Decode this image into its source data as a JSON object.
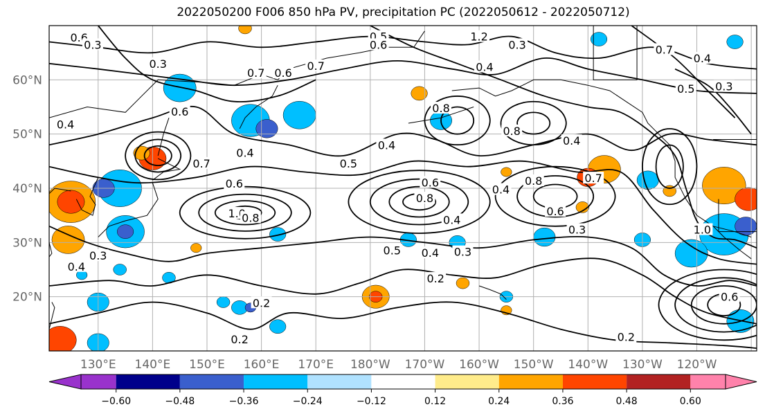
{
  "title": "2022050200 F006 850 hPa PV, precipitation PC (2022050612 - 2022050712)",
  "lon_labels": [
    "130°E",
    "140°E",
    "150°E",
    "160°E",
    "170°E",
    "180°W",
    "170°W",
    "160°W",
    "150°W",
    "140°W",
    "130°W",
    "120°W"
  ],
  "lat_labels": [
    "60°N",
    "50°N",
    "40°N",
    "30°N",
    "20°N"
  ],
  "map_extent": {
    "lon_min": 121,
    "lon_max": 251,
    "lat_min": 10,
    "lat_max": 70
  },
  "contour_labels": [
    {
      "text": "0.6",
      "lon": 126.5,
      "lat": 67.8
    },
    {
      "text": "0.3",
      "lon": 129,
      "lat": 66.5
    },
    {
      "text": "0.3",
      "lon": 141,
      "lat": 63
    },
    {
      "text": "0.7",
      "lon": 159,
      "lat": 61.3
    },
    {
      "text": "0.6",
      "lon": 164,
      "lat": 61.3
    },
    {
      "text": "0.7",
      "lon": 170,
      "lat": 62.6
    },
    {
      "text": "0.5",
      "lon": 181.5,
      "lat": 68
    },
    {
      "text": "0.6",
      "lon": 181.5,
      "lat": 66.5
    },
    {
      "text": "1.2",
      "lon": 200,
      "lat": 68
    },
    {
      "text": "0.3",
      "lon": 207,
      "lat": 66.5
    },
    {
      "text": "0.4",
      "lon": 201,
      "lat": 62.4
    },
    {
      "text": "0.7",
      "lon": 234,
      "lat": 65.6
    },
    {
      "text": "0.4",
      "lon": 241,
      "lat": 64
    },
    {
      "text": "0.5",
      "lon": 238,
      "lat": 58.4
    },
    {
      "text": "0.3",
      "lon": 245,
      "lat": 58.8
    },
    {
      "text": "0.6",
      "lon": 145,
      "lat": 54.2
    },
    {
      "text": "0.4",
      "lon": 124,
      "lat": 51.8
    },
    {
      "text": "0.4",
      "lon": 157,
      "lat": 46.6
    },
    {
      "text": "0.4",
      "lon": 183,
      "lat": 48
    },
    {
      "text": "0.8",
      "lon": 193,
      "lat": 54.8
    },
    {
      "text": "0.8",
      "lon": 206,
      "lat": 50.6
    },
    {
      "text": "0.4",
      "lon": 217,
      "lat": 48.8
    },
    {
      "text": "0.5",
      "lon": 176,
      "lat": 44.6
    },
    {
      "text": "0.6",
      "lon": 191,
      "lat": 41.1
    },
    {
      "text": "0.6",
      "lon": 155,
      "lat": 40.9
    },
    {
      "text": "0.8",
      "lon": 190,
      "lat": 38.2
    },
    {
      "text": "1.0",
      "lon": 155.5,
      "lat": 35.4
    },
    {
      "text": "0.8",
      "lon": 158,
      "lat": 34.6
    },
    {
      "text": "0.4",
      "lon": 204,
      "lat": 39.8
    },
    {
      "text": "0.8",
      "lon": 210,
      "lat": 41.4
    },
    {
      "text": "0.7",
      "lon": 221,
      "lat": 41.9
    },
    {
      "text": "0.6",
      "lon": 214,
      "lat": 35.8
    },
    {
      "text": "0.4",
      "lon": 195,
      "lat": 34.2
    },
    {
      "text": "0.3",
      "lon": 218,
      "lat": 32.4
    },
    {
      "text": "0.5",
      "lon": 184,
      "lat": 28.6
    },
    {
      "text": "0.4",
      "lon": 191,
      "lat": 28.1
    },
    {
      "text": "0.3",
      "lon": 197,
      "lat": 28.3
    },
    {
      "text": "0.2",
      "lon": 192,
      "lat": 23.4
    },
    {
      "text": "0.2",
      "lon": 160,
      "lat": 18.9
    },
    {
      "text": "0.2",
      "lon": 156,
      "lat": 12.2
    },
    {
      "text": "0.2",
      "lon": 227,
      "lat": 12.6
    },
    {
      "text": "0.6",
      "lon": 246,
      "lat": 20
    },
    {
      "text": "1.0",
      "lon": 241,
      "lat": 32.4
    },
    {
      "text": "0.4",
      "lon": 126,
      "lat": 25.6
    },
    {
      "text": "0.3",
      "lon": 130,
      "lat": 27.6
    },
    {
      "text": "0.7",
      "lon": 149,
      "lat": 44.6
    }
  ],
  "colorbar": {
    "colors": [
      "#9932cc",
      "#00008b",
      "#3a5fcd",
      "#00bfff",
      "#b0e2ff",
      "#ffffff",
      "#ffec8b",
      "#ffa500",
      "#ff4500",
      "#b22222",
      "#ff82ab"
    ],
    "tick_labels": [
      "−0.60",
      "−0.48",
      "−0.36",
      "−0.24",
      "−0.12",
      "0.12",
      "0.24",
      "0.36",
      "0.48",
      "0.60"
    ]
  },
  "precip_patches": [
    {
      "lon": 145,
      "lat": 58.5,
      "r": 3,
      "v": -0.3
    },
    {
      "lon": 158,
      "lat": 52.5,
      "r": 3.5,
      "v": -0.35
    },
    {
      "lon": 161,
      "lat": 51,
      "r": 2,
      "v": -0.45
    },
    {
      "lon": 140,
      "lat": 45.5,
      "r": 2.5,
      "v": 0.4
    },
    {
      "lon": 138,
      "lat": 46.5,
      "r": 1.5,
      "v": 0.25
    },
    {
      "lon": 134,
      "lat": 40,
      "r": 4,
      "v": -0.25
    },
    {
      "lon": 131,
      "lat": 40,
      "r": 2,
      "v": -0.45
    },
    {
      "lon": 125,
      "lat": 37.5,
      "r": 4.5,
      "v": 0.3
    },
    {
      "lon": 125,
      "lat": 37.5,
      "r": 2.5,
      "v": 0.4
    },
    {
      "lon": 135,
      "lat": 32,
      "r": 3.5,
      "v": -0.3
    },
    {
      "lon": 135,
      "lat": 32,
      "r": 1.5,
      "v": -0.45
    },
    {
      "lon": 124.5,
      "lat": 30.5,
      "r": 3,
      "v": 0.3
    },
    {
      "lon": 123,
      "lat": 12,
      "r": 3,
      "v": 0.45
    },
    {
      "lon": 130,
      "lat": 11.5,
      "r": 2,
      "v": -0.25
    },
    {
      "lon": 167,
      "lat": 53.5,
      "r": 3,
      "v": -0.25
    },
    {
      "lon": 193,
      "lat": 52.5,
      "r": 2,
      "v": -0.3
    },
    {
      "lon": 189,
      "lat": 57.5,
      "r": 1.5,
      "v": 0.3
    },
    {
      "lon": 223,
      "lat": 43.5,
      "r": 3,
      "v": 0.3
    },
    {
      "lon": 220,
      "lat": 42,
      "r": 2,
      "v": 0.4
    },
    {
      "lon": 231,
      "lat": 41.5,
      "r": 2,
      "v": -0.25
    },
    {
      "lon": 235,
      "lat": 39.5,
      "r": 1.2,
      "v": 0.25
    },
    {
      "lon": 245,
      "lat": 40.5,
      "r": 4,
      "v": 0.3
    },
    {
      "lon": 249.5,
      "lat": 38,
      "r": 2.5,
      "v": 0.45
    },
    {
      "lon": 245,
      "lat": 31.5,
      "r": 4.5,
      "v": -0.25
    },
    {
      "lon": 249,
      "lat": 33,
      "r": 2,
      "v": -0.4
    },
    {
      "lon": 239,
      "lat": 28,
      "r": 3,
      "v": -0.3
    },
    {
      "lon": 248,
      "lat": 15.5,
      "r": 2.5,
      "v": -0.25
    },
    {
      "lon": 230,
      "lat": 30.5,
      "r": 1.5,
      "v": -0.3
    },
    {
      "lon": 181,
      "lat": 20,
      "r": 2.5,
      "v": 0.35
    },
    {
      "lon": 181,
      "lat": 20,
      "r": 1.2,
      "v": 0.45
    },
    {
      "lon": 163,
      "lat": 31.5,
      "r": 1.5,
      "v": -0.3
    },
    {
      "lon": 187,
      "lat": 30.5,
      "r": 1.5,
      "v": -0.3
    },
    {
      "lon": 196,
      "lat": 30,
      "r": 1.5,
      "v": -0.25
    },
    {
      "lon": 212,
      "lat": 31,
      "r": 2,
      "v": -0.25
    },
    {
      "lon": 156,
      "lat": 18,
      "r": 1.5,
      "v": -0.3
    },
    {
      "lon": 158,
      "lat": 18,
      "r": 1,
      "v": -0.4
    },
    {
      "lon": 163,
      "lat": 14.5,
      "r": 1.5,
      "v": -0.25
    },
    {
      "lon": 134,
      "lat": 25,
      "r": 1.2,
      "v": -0.25
    },
    {
      "lon": 130,
      "lat": 19,
      "r": 2,
      "v": -0.25
    },
    {
      "lon": 143,
      "lat": 23.5,
      "r": 1.2,
      "v": -0.3
    },
    {
      "lon": 153,
      "lat": 19,
      "r": 1.2,
      "v": -0.25
    },
    {
      "lon": 197,
      "lat": 22.5,
      "r": 1.2,
      "v": 0.3
    },
    {
      "lon": 205,
      "lat": 20,
      "r": 1.2,
      "v": -0.25
    },
    {
      "lon": 205,
      "lat": 17.5,
      "r": 1,
      "v": 0.3
    },
    {
      "lon": 219,
      "lat": 36.5,
      "r": 1.2,
      "v": 0.3
    },
    {
      "lon": 205,
      "lat": 43,
      "r": 1,
      "v": 0.3
    },
    {
      "lon": 148,
      "lat": 29,
      "r": 1,
      "v": 0.25
    },
    {
      "lon": 127,
      "lat": 24,
      "r": 1,
      "v": -0.3
    },
    {
      "lon": 247,
      "lat": 67,
      "r": 1.5,
      "v": -0.3
    },
    {
      "lon": 222,
      "lat": 67.5,
      "r": 1.5,
      "v": -0.35
    },
    {
      "lon": 157,
      "lat": 69.5,
      "r": 1.2,
      "v": 0.25
    }
  ]
}
